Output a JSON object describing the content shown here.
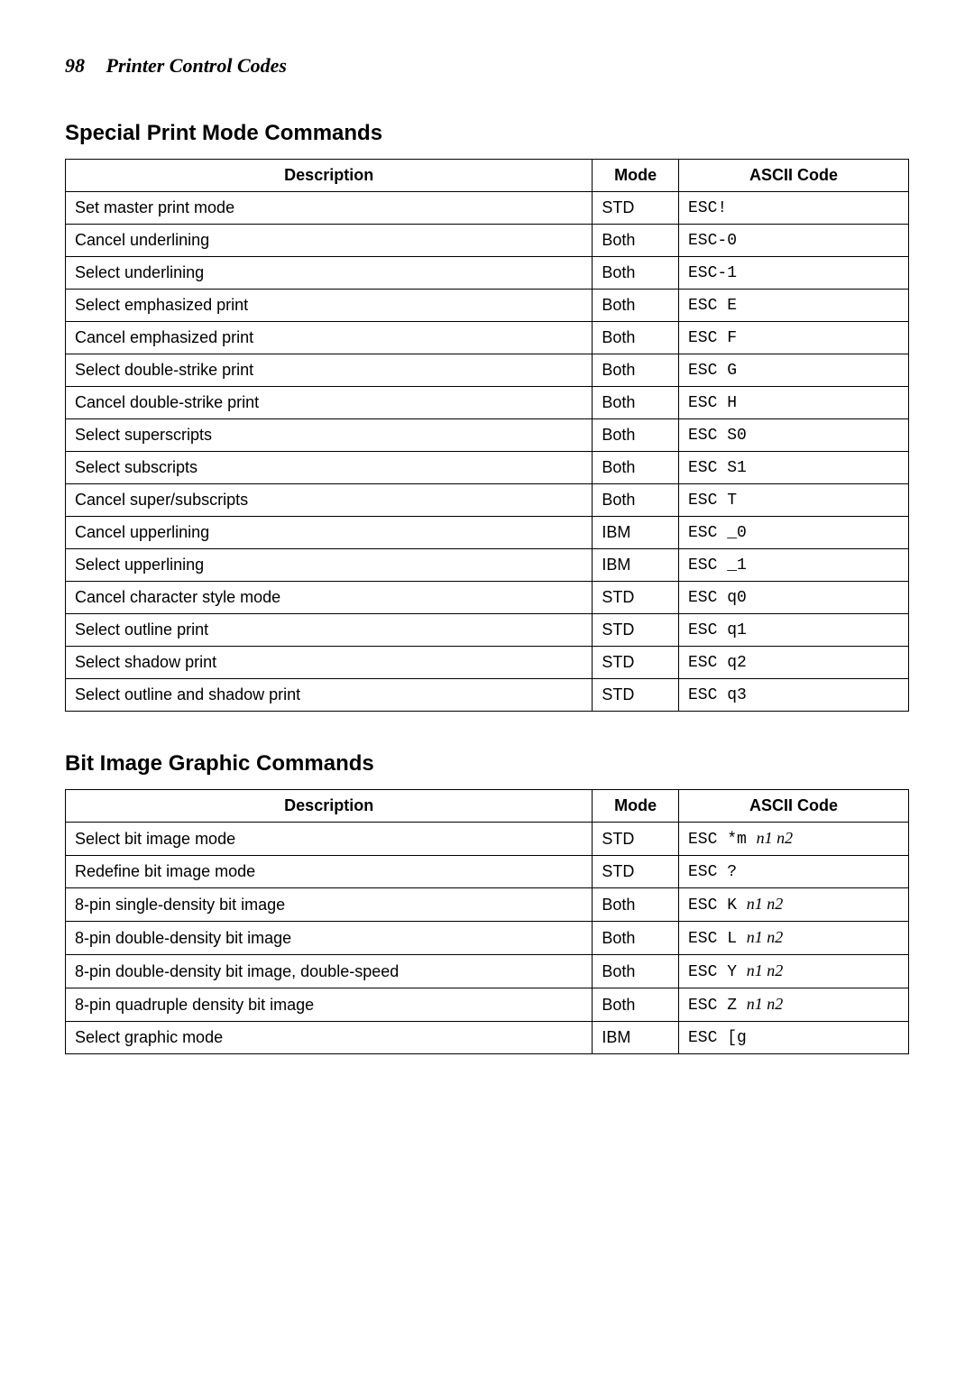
{
  "header": {
    "page_number": "98",
    "title": "Printer Control Codes"
  },
  "sections": [
    {
      "heading": "Special Print Mode Commands",
      "columns": [
        "Description",
        "Mode",
        "ASCII Code"
      ],
      "rows": [
        {
          "desc": "Set master print mode",
          "mode": "STD",
          "ascii": [
            {
              "t": "ESC!",
              "italic": false
            }
          ]
        },
        {
          "desc": "Cancel underlining",
          "mode": "Both",
          "ascii": [
            {
              "t": "ESC-0",
              "italic": false
            }
          ]
        },
        {
          "desc": "Select underlining",
          "mode": "Both",
          "ascii": [
            {
              "t": "ESC-1",
              "italic": false
            }
          ]
        },
        {
          "desc": "Select emphasized print",
          "mode": "Both",
          "ascii": [
            {
              "t": "ESC E",
              "italic": false
            }
          ]
        },
        {
          "desc": "Cancel emphasized print",
          "mode": "Both",
          "ascii": [
            {
              "t": "ESC F",
              "italic": false
            }
          ]
        },
        {
          "desc": "Select double-strike print",
          "mode": "Both",
          "ascii": [
            {
              "t": "ESC G",
              "italic": false
            }
          ]
        },
        {
          "desc": "Cancel double-strike print",
          "mode": "Both",
          "ascii": [
            {
              "t": "ESC H",
              "italic": false
            }
          ]
        },
        {
          "desc": "Select superscripts",
          "mode": "Both",
          "ascii": [
            {
              "t": "ESC S0",
              "italic": false
            }
          ]
        },
        {
          "desc": "Select subscripts",
          "mode": "Both",
          "ascii": [
            {
              "t": "ESC S1",
              "italic": false
            }
          ]
        },
        {
          "desc": "Cancel super/subscripts",
          "mode": "Both",
          "ascii": [
            {
              "t": "ESC T",
              "italic": false
            }
          ]
        },
        {
          "desc": "Cancel upperlining",
          "mode": "IBM",
          "ascii": [
            {
              "t": "ESC _0",
              "italic": false
            }
          ]
        },
        {
          "desc": "Select upperlining",
          "mode": "IBM",
          "ascii": [
            {
              "t": "ESC _1",
              "italic": false
            }
          ]
        },
        {
          "desc": "Cancel character style mode",
          "mode": "STD",
          "ascii": [
            {
              "t": "ESC q0",
              "italic": false
            }
          ]
        },
        {
          "desc": "Select outline print",
          "mode": "STD",
          "ascii": [
            {
              "t": "ESC q1",
              "italic": false
            }
          ]
        },
        {
          "desc": "Select shadow print",
          "mode": "STD",
          "ascii": [
            {
              "t": "ESC q2",
              "italic": false
            }
          ]
        },
        {
          "desc": "Select outline and shadow print",
          "mode": "STD",
          "ascii": [
            {
              "t": "ESC q3",
              "italic": false
            }
          ]
        }
      ]
    },
    {
      "heading": "Bit Image Graphic Commands",
      "columns": [
        "Description",
        "Mode",
        "ASCII Code"
      ],
      "rows": [
        {
          "desc": "Select bit image mode",
          "mode": "STD",
          "ascii": [
            {
              "t": "ESC *m ",
              "italic": false
            },
            {
              "t": "n1 n2",
              "italic": true
            }
          ]
        },
        {
          "desc": "Redefine bit image mode",
          "mode": "STD",
          "ascii": [
            {
              "t": "ESC ?",
              "italic": false
            }
          ]
        },
        {
          "desc": "8-pin single-density bit image",
          "mode": "Both",
          "ascii": [
            {
              "t": "ESC K ",
              "italic": false
            },
            {
              "t": "n1 n2",
              "italic": true
            }
          ]
        },
        {
          "desc": "8-pin double-density bit image",
          "mode": "Both",
          "ascii": [
            {
              "t": "ESC L ",
              "italic": false
            },
            {
              "t": "n1 n2",
              "italic": true
            }
          ]
        },
        {
          "desc": "8-pin double-density bit image, double-speed",
          "mode": "Both",
          "ascii": [
            {
              "t": "ESC Y ",
              "italic": false
            },
            {
              "t": "n1 n2",
              "italic": true
            }
          ]
        },
        {
          "desc": "8-pin quadruple density bit image",
          "mode": "Both",
          "ascii": [
            {
              "t": "ESC Z ",
              "italic": false
            },
            {
              "t": "n1 n2",
              "italic": true
            }
          ]
        },
        {
          "desc": "Select graphic mode",
          "mode": "IBM",
          "ascii": [
            {
              "t": "ESC [g",
              "italic": false
            }
          ]
        }
      ]
    }
  ],
  "style": {
    "body_bg": "#ffffff",
    "text_color": "#000000",
    "border_color": "#000000",
    "header_fontsize": 22,
    "section_heading_fontsize": 24,
    "cell_fontsize": 18
  }
}
